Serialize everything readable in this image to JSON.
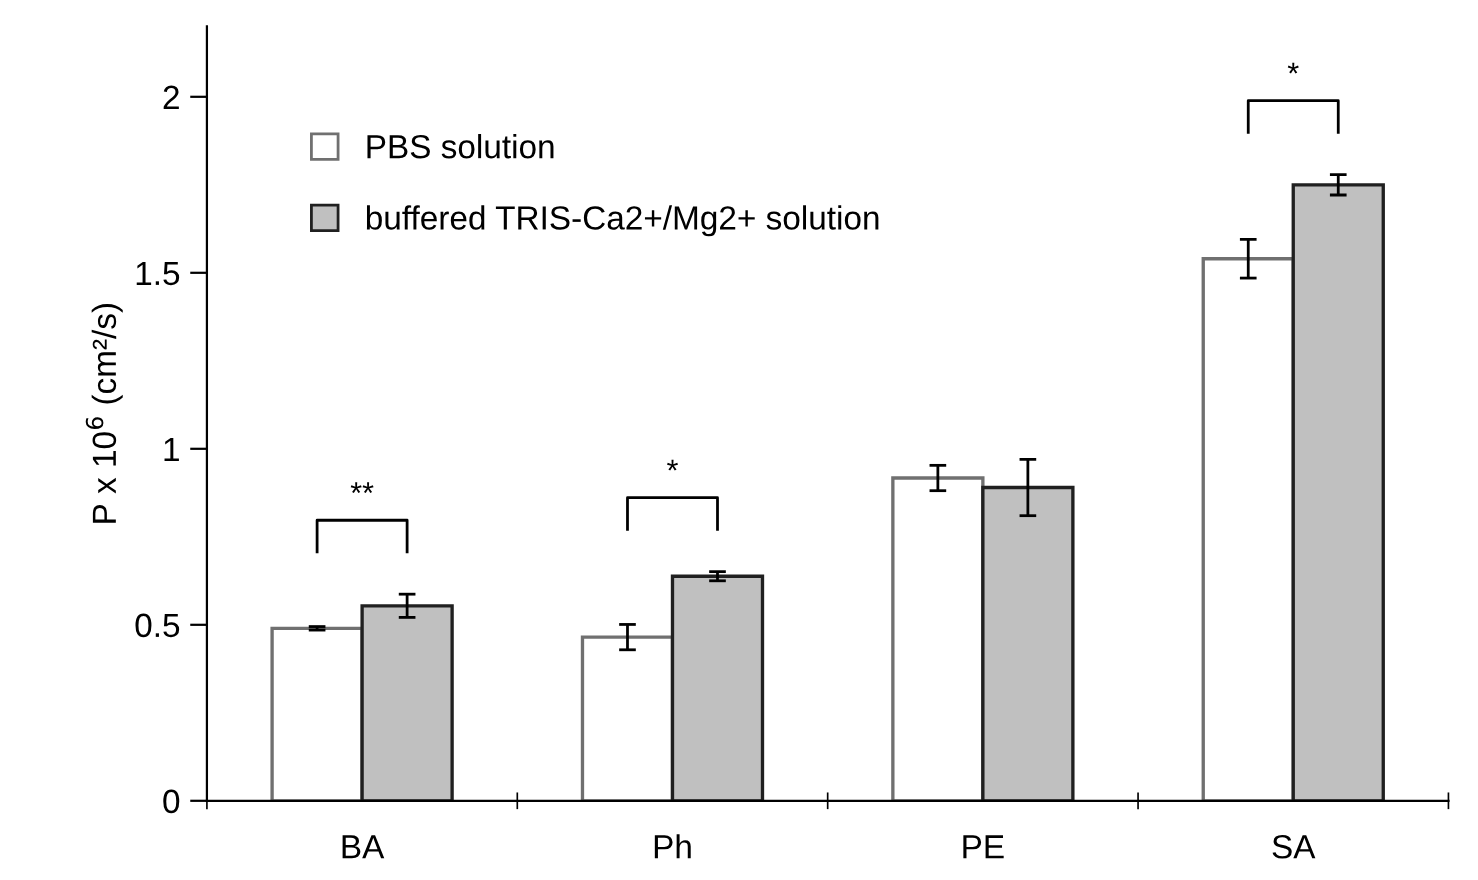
{
  "chart_data": {
    "type": "bar",
    "ylabel": "P x 10$^{6}$ (cm²/s)",
    "categories": [
      "BA",
      "Ph",
      "PE",
      "SA"
    ],
    "series": [
      {
        "name": "PBS solution",
        "color": "#ffffff",
        "values": [
          0.49,
          0.465,
          0.917,
          1.54
        ],
        "errors": [
          0.005,
          0.036,
          0.036,
          0.055
        ]
      },
      {
        "name": "buffered TRIS-Ca2+/Mg2+ solution",
        "color": "#c0c0c0",
        "values": [
          0.554,
          0.638,
          0.89,
          1.75
        ],
        "errors": [
          0.033,
          0.013,
          0.08,
          0.029
        ]
      }
    ],
    "ylim": [
      0,
      2.2
    ],
    "yticks": [
      0,
      0.5,
      1,
      1.5,
      2
    ],
    "grid": false,
    "legend": "top left",
    "annotations": [
      "**",
      "*",
      "*"
    ]
  }
}
